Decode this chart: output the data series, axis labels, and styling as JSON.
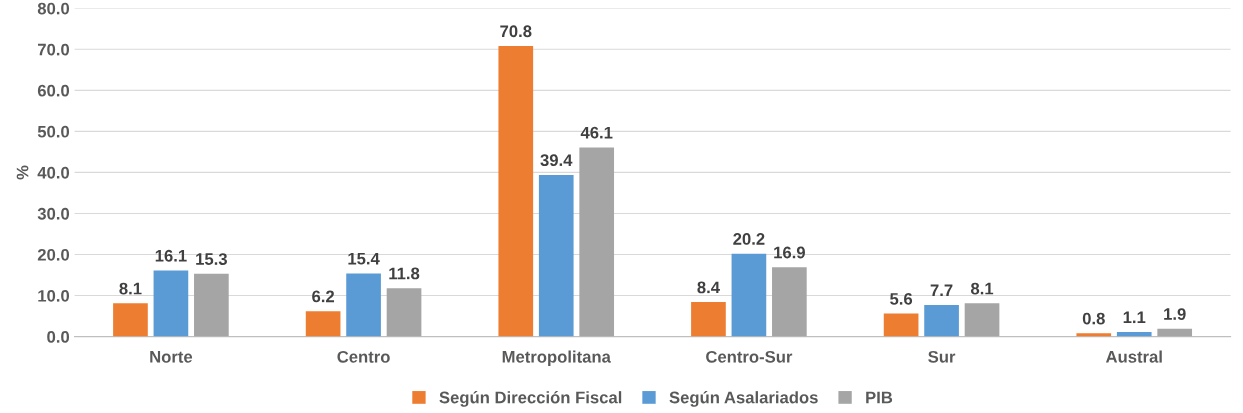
{
  "chart_data": {
    "type": "bar",
    "ylabel": "%",
    "categories": [
      "Norte",
      "Centro",
      "Metropolitana",
      "Centro-Sur",
      "Sur",
      "Austral"
    ],
    "series": [
      {
        "name": "Según Dirección Fiscal",
        "color": "#ed7d31",
        "values": [
          8.1,
          6.2,
          70.8,
          8.4,
          5.6,
          0.8
        ]
      },
      {
        "name": "Según Asalariados",
        "color": "#5b9bd5",
        "values": [
          16.1,
          15.4,
          39.4,
          20.2,
          7.7,
          1.1
        ]
      },
      {
        "name": "PIB",
        "color": "#a5a5a5",
        "values": [
          15.3,
          11.8,
          46.1,
          16.9,
          8.1,
          1.9
        ]
      }
    ],
    "ylim": [
      0,
      80
    ],
    "yticks": [
      {
        "value": 0,
        "label": "0.0"
      },
      {
        "value": 10,
        "label": "10.0"
      },
      {
        "value": 20,
        "label": "20.0"
      },
      {
        "value": 30,
        "label": "30.0"
      },
      {
        "value": 40,
        "label": "40.0"
      },
      {
        "value": 50,
        "label": "50.0"
      },
      {
        "value": 60,
        "label": "60.0"
      },
      {
        "value": 70,
        "label": "70.0"
      },
      {
        "value": 80,
        "label": "80.0"
      }
    ],
    "grid": "y",
    "legend": "bottom",
    "data_labels": true
  }
}
